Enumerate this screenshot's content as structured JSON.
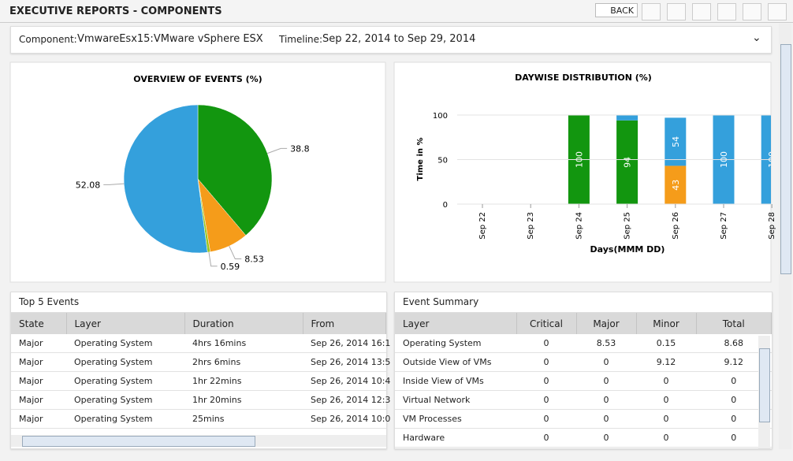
{
  "header": {
    "title": "EXECUTIVE REPORTS - COMPONENTS",
    "back": "BACK"
  },
  "filter": {
    "component_label": "Component:",
    "component": "VmwareEsx15:VMware vSphere ESX",
    "timeline_label": "Timeline:",
    "timeline": "Sep 22, 2014 to Sep 29, 2014"
  },
  "chart_data": [
    {
      "type": "pie",
      "title": "OVERVIEW OF EVENTS (%)",
      "values": [
        38.8,
        8.53,
        0.59,
        52.08
      ],
      "colors": [
        "#12960f",
        "#f59c1a",
        "#9cc51e",
        "#34a0dc"
      ]
    },
    {
      "type": "bar",
      "stacked": true,
      "title": "DAYWISE DISTRIBUTION (%)",
      "y_label": "Time in %",
      "x_label": "Days(MMM DD)",
      "categories": [
        "Sep 22",
        "Sep 23",
        "Sep 24",
        "Sep 25",
        "Sep 26",
        "Sep 27",
        "Sep 28"
      ],
      "series": [
        {
          "color": "#12960f",
          "values": [
            null,
            null,
            100,
            94,
            null,
            null,
            null
          ]
        },
        {
          "color": "#f59c1a",
          "values": [
            null,
            null,
            null,
            null,
            43,
            null,
            null
          ]
        },
        {
          "color": "#34a0dc",
          "values": [
            null,
            null,
            null,
            6,
            54,
            100,
            100
          ]
        }
      ],
      "ylim": [
        0,
        100
      ],
      "yticks": [
        0,
        50,
        100
      ],
      "grid": true
    }
  ],
  "top_events": {
    "title": "Top 5 Events",
    "columns": [
      "State",
      "Layer",
      "Duration",
      "From"
    ],
    "rows": [
      [
        "Major",
        "Operating System",
        "4hrs 16mins",
        "Sep 26, 2014 16:1"
      ],
      [
        "Major",
        "Operating System",
        "2hrs 6mins",
        "Sep 26, 2014 13:5"
      ],
      [
        "Major",
        "Operating System",
        "1hr 22mins",
        "Sep 26, 2014 10:4"
      ],
      [
        "Major",
        "Operating System",
        "1hr 20mins",
        "Sep 26, 2014 12:3"
      ],
      [
        "Major",
        "Operating System",
        "25mins",
        "Sep 26, 2014 10:0"
      ]
    ]
  },
  "event_summary": {
    "title": "Event Summary",
    "columns": [
      "Layer",
      "Critical",
      "Major",
      "Minor",
      "Total"
    ],
    "rows": [
      [
        "Operating System",
        "0",
        "8.53",
        "0.15",
        "8.68"
      ],
      [
        "Outside View of VMs",
        "0",
        "0",
        "9.12",
        "9.12"
      ],
      [
        "Inside View of VMs",
        "0",
        "0",
        "0",
        "0"
      ],
      [
        "Virtual Network",
        "0",
        "0",
        "0",
        "0"
      ],
      [
        "VM Processes",
        "0",
        "0",
        "0",
        "0"
      ],
      [
        "Hardware",
        "0",
        "0",
        "0",
        "0"
      ]
    ]
  }
}
